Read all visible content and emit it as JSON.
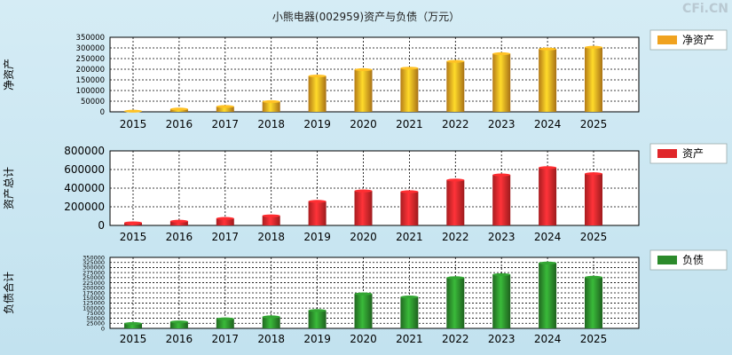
{
  "title": "小熊电器(002959)资产与负债（万元）",
  "watermark": "CFi.CN",
  "colors": {
    "equity": "#f0a21f",
    "assets": "#e0262a",
    "liabilities": "#2b8a2b",
    "background": "#cfe8f2"
  },
  "chart_data": [
    {
      "type": "bar",
      "ylabel": "净资产",
      "categories": [
        "2015",
        "2016",
        "2017",
        "2018",
        "2019",
        "2020",
        "2021",
        "2022",
        "2023",
        "2024",
        "2025"
      ],
      "series": [
        {
          "name": "净资产",
          "values": [
            3000,
            13000,
            25000,
            48000,
            168000,
            198000,
            205000,
            237000,
            273000,
            295000,
            303000
          ]
        }
      ],
      "ylim": [
        0,
        350000
      ],
      "yticks": [
        0,
        50000,
        100000,
        150000,
        200000,
        250000,
        300000,
        350000
      ],
      "grid": true,
      "legend": "right"
    },
    {
      "type": "bar",
      "ylabel": "资产总计",
      "categories": [
        "2015",
        "2016",
        "2017",
        "2018",
        "2019",
        "2020",
        "2021",
        "2022",
        "2023",
        "2024",
        "2025"
      ],
      "series": [
        {
          "name": "资产",
          "values": [
            28000,
            45000,
            75000,
            103000,
            258000,
            370000,
            362000,
            487000,
            542000,
            620000,
            555000
          ]
        }
      ],
      "ylim": [
        0,
        800000
      ],
      "yticks": [
        0,
        200000,
        400000,
        600000,
        800000
      ],
      "grid": true,
      "legend": "right"
    },
    {
      "type": "bar",
      "ylabel": "负债合计",
      "categories": [
        "2015",
        "2016",
        "2017",
        "2018",
        "2019",
        "2020",
        "2021",
        "2022",
        "2023",
        "2024",
        "2025"
      ],
      "series": [
        {
          "name": "负债",
          "values": [
            24000,
            32000,
            47000,
            57000,
            88000,
            170000,
            155000,
            250000,
            265000,
            322000,
            252000
          ]
        }
      ],
      "ylim": [
        0,
        350000
      ],
      "yticks": [
        0,
        25000,
        50000,
        75000,
        100000,
        125000,
        150000,
        175000,
        200000,
        225000,
        250000,
        275000,
        300000,
        325000,
        350000
      ],
      "grid": true,
      "legend": "right"
    }
  ]
}
